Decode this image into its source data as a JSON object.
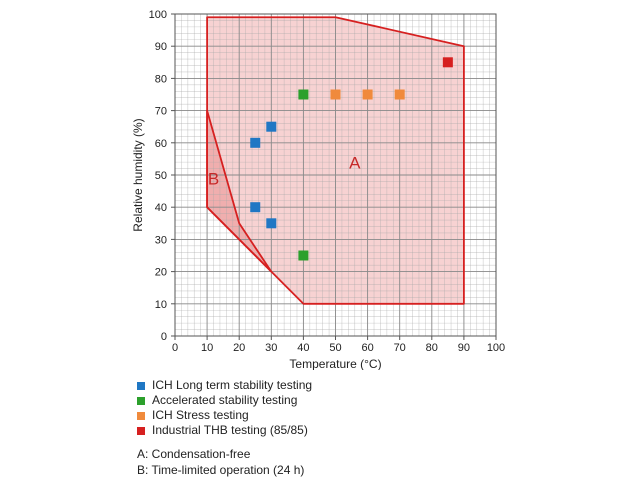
{
  "chart_data": {
    "type": "scatter",
    "xlabel": "Temperature (°C)",
    "ylabel": "Relative humidity (%)",
    "xlim": [
      0,
      100
    ],
    "ylim": [
      0,
      100
    ],
    "xticks": [
      0,
      10,
      20,
      30,
      40,
      50,
      60,
      70,
      80,
      90,
      100
    ],
    "yticks": [
      0,
      10,
      20,
      30,
      40,
      50,
      60,
      70,
      80,
      90,
      100
    ],
    "grid": true,
    "series": [
      {
        "name": "ICH Long term stability testing",
        "color": "#1f77c4",
        "points": [
          [
            25,
            60
          ],
          [
            30,
            65
          ],
          [
            25,
            40
          ],
          [
            30,
            35
          ]
        ]
      },
      {
        "name": "Accelerated stability testing",
        "color": "#2ca02c",
        "points": [
          [
            40,
            75
          ],
          [
            40,
            25
          ]
        ]
      },
      {
        "name": "ICH Stress testing",
        "color": "#f08a3c",
        "points": [
          [
            50,
            75
          ],
          [
            60,
            75
          ],
          [
            70,
            75
          ]
        ]
      },
      {
        "name": "Industrial THB testing (85/85)",
        "color": "#d62020",
        "points": [
          [
            85,
            85
          ]
        ]
      }
    ],
    "regions": [
      {
        "label": "A",
        "label_at": [
          56,
          52
        ],
        "polygon": [
          [
            10,
            99
          ],
          [
            50,
            99
          ],
          [
            90,
            90
          ],
          [
            90,
            10
          ],
          [
            40,
            10
          ],
          [
            10,
            40
          ]
        ]
      },
      {
        "label": "B",
        "label_at": [
          12,
          47
        ],
        "polygon": [
          [
            10,
            70
          ],
          [
            20,
            35
          ],
          [
            30,
            20
          ],
          [
            10,
            40
          ]
        ]
      }
    ],
    "region_color": "#d62020"
  },
  "legend": {
    "items": [
      {
        "label": "ICH Long term stability testing",
        "color": "#1f77c4"
      },
      {
        "label": "Accelerated stability testing",
        "color": "#2ca02c"
      },
      {
        "label": "ICH Stress testing",
        "color": "#f08a3c"
      },
      {
        "label": "Industrial THB testing (85/85)",
        "color": "#d62020"
      }
    ]
  },
  "notes": {
    "a": "A: Condensation-free",
    "b": "B: Time-limited operation (24 h)"
  }
}
